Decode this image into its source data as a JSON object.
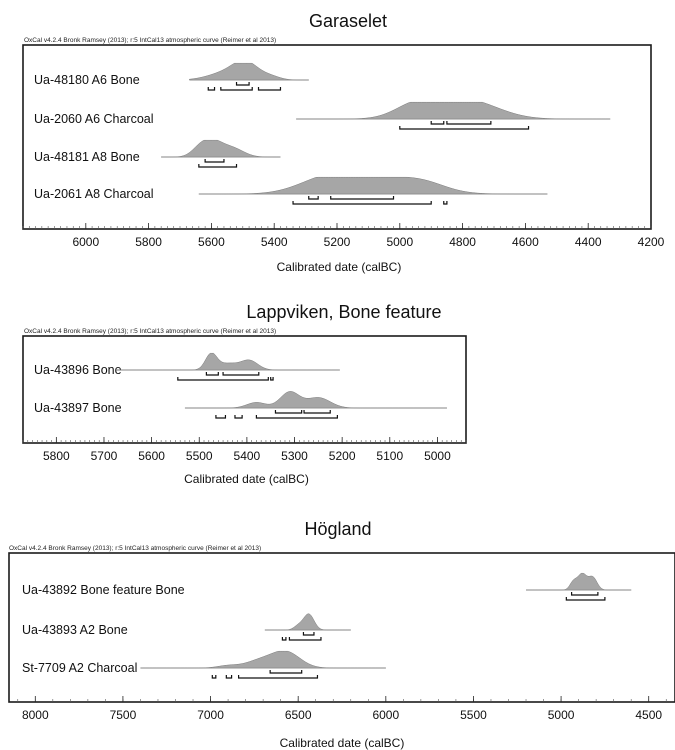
{
  "chart_data": [
    {
      "type": "oxcal_calibration",
      "title": "Garaselet",
      "credit": "OxCal v4.2.4 Bronk Ramsey (2013); r:5 IntCal13 atmospheric curve (Reimer et al 2013)",
      "xlabel": "Calibrated date (calBC)",
      "xlim": [
        6200,
        4200
      ],
      "ticks": [
        6000,
        5800,
        5600,
        5400,
        5200,
        5000,
        4800,
        4600,
        4400,
        4200
      ],
      "samples": [
        {
          "label": "Ua-48180 A6 Bone",
          "range": [
            5670,
            5290
          ],
          "peaks": [
            {
              "center": 5490,
              "width": 40,
              "height": 1.0
            },
            {
              "center": 5555,
              "width": 55,
              "height": 0.45
            },
            {
              "center": 5410,
              "width": 30,
              "height": 0.2
            }
          ],
          "brackets_68": [
            [
              5520,
              5480
            ]
          ],
          "brackets_95": [
            [
              5610,
              5590
            ],
            [
              5570,
              5470
            ],
            [
              5450,
              5380
            ]
          ]
        },
        {
          "label": "Ua-2060 A6 Charcoal",
          "range": [
            5330,
            4330
          ],
          "peaks": [
            {
              "center": 4880,
              "width": 90,
              "height": 0.8
            },
            {
              "center": 4760,
              "width": 90,
              "height": 0.85
            },
            {
              "center": 4960,
              "width": 60,
              "height": 0.5
            }
          ],
          "brackets_68": [
            [
              4900,
              4860
            ],
            [
              4850,
              4710
            ]
          ],
          "brackets_95": [
            [
              5000,
              4590
            ]
          ]
        },
        {
          "label": "Ua-48181 A8 Bone",
          "range": [
            5760,
            5380
          ],
          "peaks": [
            {
              "center": 5600,
              "width": 35,
              "height": 1.0
            },
            {
              "center": 5530,
              "width": 35,
              "height": 0.5
            },
            {
              "center": 5640,
              "width": 25,
              "height": 0.3
            }
          ],
          "brackets_68": [
            [
              5620,
              5560
            ]
          ],
          "brackets_95": [
            [
              5640,
              5520
            ]
          ]
        },
        {
          "label": "Ua-2061 A8 Charcoal",
          "range": [
            5640,
            4530
          ],
          "peaks": [
            {
              "center": 5230,
              "width": 90,
              "height": 0.9
            },
            {
              "center": 5060,
              "width": 120,
              "height": 0.95
            },
            {
              "center": 4920,
              "width": 70,
              "height": 0.4
            }
          ],
          "brackets_68": [
            [
              5290,
              5260
            ],
            [
              5220,
              5020
            ]
          ],
          "brackets_95": [
            [
              5340,
              4900
            ],
            [
              4860,
              4850
            ]
          ]
        }
      ]
    },
    {
      "type": "oxcal_calibration",
      "title": "Lappviken, Bone feature",
      "credit": "OxCal v4.2.4 Bronk Ramsey (2013); r:5 IntCal13 atmospheric curve (Reimer et al 2013)",
      "xlabel": "Calibrated date (calBC)",
      "xlim": [
        5870,
        4940
      ],
      "ticks": [
        5800,
        5700,
        5600,
        5500,
        5400,
        5300,
        5200,
        5100,
        5000
      ],
      "samples": [
        {
          "label": "Ua-43896 Bone",
          "range": [
            5675,
            5205
          ],
          "peaks": [
            {
              "center": 5475,
              "width": 12,
              "height": 1.0
            },
            {
              "center": 5395,
              "width": 18,
              "height": 0.6
            },
            {
              "center": 5440,
              "width": 20,
              "height": 0.4
            }
          ],
          "brackets_68": [
            [
              5485,
              5460
            ],
            [
              5450,
              5375
            ]
          ],
          "brackets_95": [
            [
              5545,
              5355
            ],
            [
              5350,
              5345
            ]
          ]
        },
        {
          "label": "Ua-43897 Bone",
          "range": [
            5530,
            4980
          ],
          "peaks": [
            {
              "center": 5310,
              "width": 20,
              "height": 1.0
            },
            {
              "center": 5250,
              "width": 25,
              "height": 0.65
            },
            {
              "center": 5380,
              "width": 20,
              "height": 0.35
            }
          ],
          "brackets_68": [
            [
              5340,
              5285
            ],
            [
              5280,
              5225
            ]
          ],
          "brackets_95": [
            [
              5465,
              5445
            ],
            [
              5425,
              5410
            ],
            [
              5380,
              5210
            ]
          ]
        }
      ]
    },
    {
      "type": "oxcal_calibration",
      "title": "Högland",
      "credit": "OxCal v4.2.4 Bronk Ramsey (2013); r:5 IntCal13 atmospheric curve (Reimer et al 2013)",
      "xlabel": "Calibrated date (calBC)",
      "xlim": [
        8150,
        4350
      ],
      "ticks": [
        8000,
        7500,
        7000,
        6500,
        6000,
        5500,
        5000,
        4500
      ],
      "samples": [
        {
          "label": "Ua-43892 Bone feature Bone",
          "range": [
            5200,
            4600
          ],
          "peaks": [
            {
              "center": 4880,
              "width": 25,
              "height": 1.0
            },
            {
              "center": 4820,
              "width": 25,
              "height": 0.8
            },
            {
              "center": 4930,
              "width": 20,
              "height": 0.5
            }
          ],
          "brackets_68": [
            [
              4940,
              4790
            ]
          ],
          "brackets_95": [
            [
              4970,
              4750
            ]
          ]
        },
        {
          "label": "Ua-43893 A2 Bone",
          "range": [
            6690,
            6200
          ],
          "peaks": [
            {
              "center": 6440,
              "width": 30,
              "height": 1.0
            },
            {
              "center": 6500,
              "width": 25,
              "height": 0.25
            }
          ],
          "brackets_68": [
            [
              6470,
              6410
            ]
          ],
          "brackets_95": [
            [
              6590,
              6570
            ],
            [
              6550,
              6370
            ]
          ]
        },
        {
          "label": "St-7709 A2 Charcoal",
          "range": [
            7400,
            6000
          ],
          "peaks": [
            {
              "center": 6570,
              "width": 80,
              "height": 1.0
            },
            {
              "center": 6720,
              "width": 80,
              "height": 0.45
            },
            {
              "center": 6900,
              "width": 60,
              "height": 0.15
            }
          ],
          "brackets_68": [
            [
              6660,
              6480
            ]
          ],
          "brackets_95": [
            [
              6990,
              6970
            ],
            [
              6910,
              6880
            ],
            [
              6840,
              6390
            ]
          ]
        }
      ]
    }
  ]
}
